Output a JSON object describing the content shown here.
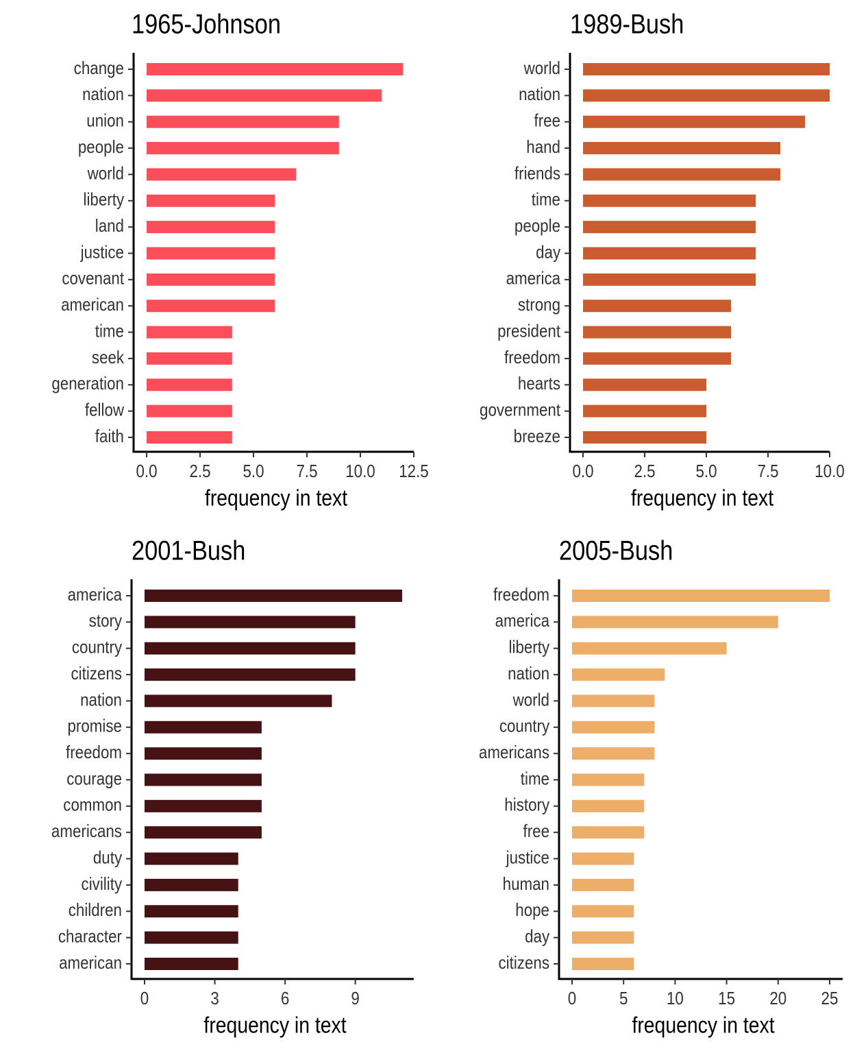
{
  "chart_data": [
    {
      "type": "bar",
      "orientation": "horizontal",
      "title": "1965-Johnson",
      "xlabel": "frequency in text",
      "ylabel": "",
      "color": "#FC4D5A",
      "categories": [
        "change",
        "nation",
        "union",
        "people",
        "world",
        "liberty",
        "land",
        "justice",
        "covenant",
        "american",
        "time",
        "seek",
        "generation",
        "fellow",
        "faith"
      ],
      "values": [
        12,
        11,
        9,
        9,
        7,
        6,
        6,
        6,
        6,
        6,
        4,
        4,
        4,
        4,
        4
      ],
      "xlim": [
        0,
        12.5
      ],
      "xticks": [
        0,
        2.5,
        5,
        7.5,
        10,
        12.5
      ],
      "xtick_labels": [
        "0.0",
        "2.5",
        "5.0",
        "7.5",
        "10.0",
        "12.5"
      ],
      "grid": false
    },
    {
      "type": "bar",
      "orientation": "horizontal",
      "title": "1989-Bush",
      "xlabel": "frequency in text",
      "ylabel": "",
      "color": "#CB5C2F",
      "categories": [
        "world",
        "nation",
        "free",
        "hand",
        "friends",
        "time",
        "people",
        "day",
        "america",
        "strong",
        "president",
        "freedom",
        "hearts",
        "government",
        "breeze"
      ],
      "values": [
        10,
        10,
        9,
        8,
        8,
        7,
        7,
        7,
        7,
        6,
        6,
        6,
        5,
        5,
        5
      ],
      "xlim": [
        0,
        10
      ],
      "xticks": [
        0,
        2.5,
        5,
        7.5,
        10
      ],
      "xtick_labels": [
        "0.0",
        "2.5",
        "5.0",
        "7.5",
        "10.0"
      ],
      "grid": false
    },
    {
      "type": "bar",
      "orientation": "horizontal",
      "title": "2001-Bush",
      "xlabel": "frequency in text",
      "ylabel": "",
      "color": "#461214",
      "categories": [
        "america",
        "story",
        "country",
        "citizens",
        "nation",
        "promise",
        "freedom",
        "courage",
        "common",
        "americans",
        "duty",
        "civility",
        "children",
        "character",
        "american"
      ],
      "values": [
        11,
        9,
        9,
        9,
        8,
        5,
        5,
        5,
        5,
        5,
        4,
        4,
        4,
        4,
        4
      ],
      "xlim": [
        0,
        11
      ],
      "xticks": [
        0,
        3,
        6,
        9
      ],
      "xtick_labels": [
        "0",
        "3",
        "6",
        "9"
      ],
      "grid": false
    },
    {
      "type": "bar",
      "orientation": "horizontal",
      "title": "2005-Bush",
      "xlabel": "frequency in text",
      "ylabel": "",
      "color": "#EDAE69",
      "categories": [
        "freedom",
        "america",
        "liberty",
        "nation",
        "world",
        "country",
        "americans",
        "time",
        "history",
        "free",
        "justice",
        "human",
        "hope",
        "day",
        "citizens"
      ],
      "values": [
        25,
        20,
        15,
        9,
        8,
        8,
        8,
        7,
        7,
        7,
        6,
        6,
        6,
        6,
        6
      ],
      "xlim": [
        0,
        25
      ],
      "xticks": [
        0,
        5,
        10,
        15,
        20,
        25
      ],
      "xtick_labels": [
        "0",
        "5",
        "10",
        "15",
        "20",
        "25"
      ],
      "grid": false
    }
  ]
}
